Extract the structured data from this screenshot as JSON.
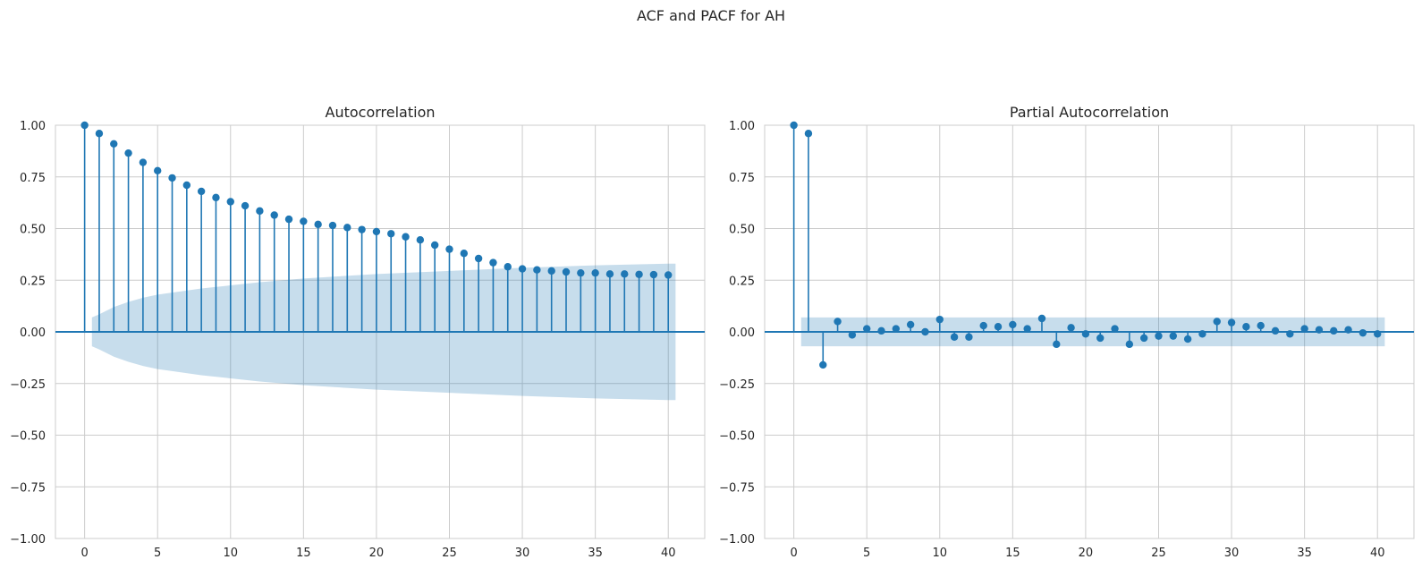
{
  "figure_title": "ACF and PACF for AH",
  "colors": {
    "series": "#1f77b4",
    "band": "#1f77b4",
    "grid": "#cccccc",
    "frame": "#cccccc",
    "text": "#262626"
  },
  "chart_data": [
    {
      "type": "stem",
      "title": "Autocorrelation",
      "xlabel": "",
      "ylabel": "",
      "xlim": [
        -2,
        42.5
      ],
      "ylim": [
        -1.0,
        1.0
      ],
      "xticks": [
        0,
        5,
        10,
        15,
        20,
        25,
        30,
        35,
        40
      ],
      "xtick_labels": [
        "0",
        "5",
        "10",
        "15",
        "20",
        "25",
        "30",
        "35",
        "40"
      ],
      "yticks": [
        -1.0,
        -0.75,
        -0.5,
        -0.25,
        0.0,
        0.25,
        0.5,
        0.75,
        1.0
      ],
      "ytick_labels": [
        "−1.00",
        "−0.75",
        "−0.50",
        "−0.25",
        "0.00",
        "0.25",
        "0.50",
        "0.75",
        "1.00"
      ],
      "grid": true,
      "lags": [
        0,
        1,
        2,
        3,
        4,
        5,
        6,
        7,
        8,
        9,
        10,
        11,
        12,
        13,
        14,
        15,
        16,
        17,
        18,
        19,
        20,
        21,
        22,
        23,
        24,
        25,
        26,
        27,
        28,
        29,
        30,
        31,
        32,
        33,
        34,
        35,
        36,
        37,
        38,
        39,
        40
      ],
      "values": [
        1.0,
        0.96,
        0.91,
        0.865,
        0.82,
        0.78,
        0.745,
        0.71,
        0.68,
        0.65,
        0.63,
        0.61,
        0.585,
        0.565,
        0.545,
        0.535,
        0.52,
        0.515,
        0.505,
        0.495,
        0.485,
        0.475,
        0.46,
        0.445,
        0.42,
        0.4,
        0.38,
        0.355,
        0.335,
        0.315,
        0.305,
        0.3,
        0.295,
        0.29,
        0.285,
        0.285,
        0.28,
        0.28,
        0.278,
        0.277,
        0.275
      ],
      "confidence_band": {
        "lags": [
          0.5,
          1,
          2,
          3,
          4,
          5,
          6,
          8,
          10,
          12,
          15,
          20,
          25,
          30,
          35,
          40,
          40.5
        ],
        "upper": [
          0.07,
          0.085,
          0.12,
          0.145,
          0.165,
          0.18,
          0.19,
          0.21,
          0.225,
          0.24,
          0.258,
          0.28,
          0.295,
          0.31,
          0.322,
          0.33,
          0.33
        ],
        "lower": [
          -0.07,
          -0.085,
          -0.12,
          -0.145,
          -0.165,
          -0.18,
          -0.19,
          -0.21,
          -0.225,
          -0.24,
          -0.258,
          -0.28,
          -0.295,
          -0.31,
          -0.322,
          -0.33,
          -0.33
        ]
      }
    },
    {
      "type": "stem",
      "title": "Partial Autocorrelation",
      "xlabel": "",
      "ylabel": "",
      "xlim": [
        -2,
        42.5
      ],
      "ylim": [
        -1.0,
        1.0
      ],
      "xticks": [
        0,
        5,
        10,
        15,
        20,
        25,
        30,
        35,
        40
      ],
      "xtick_labels": [
        "0",
        "5",
        "10",
        "15",
        "20",
        "25",
        "30",
        "35",
        "40"
      ],
      "yticks": [
        -1.0,
        -0.75,
        -0.5,
        -0.25,
        0.0,
        0.25,
        0.5,
        0.75,
        1.0
      ],
      "ytick_labels": [
        "−1.00",
        "−0.75",
        "−0.50",
        "−0.25",
        "0.00",
        "0.25",
        "0.50",
        "0.75",
        "1.00"
      ],
      "grid": true,
      "lags": [
        0,
        1,
        2,
        3,
        4,
        5,
        6,
        7,
        8,
        9,
        10,
        11,
        12,
        13,
        14,
        15,
        16,
        17,
        18,
        19,
        20,
        21,
        22,
        23,
        24,
        25,
        26,
        27,
        28,
        29,
        30,
        31,
        32,
        33,
        34,
        35,
        36,
        37,
        38,
        39,
        40
      ],
      "values": [
        1.0,
        0.96,
        -0.16,
        0.05,
        -0.015,
        0.015,
        0.005,
        0.015,
        0.035,
        0.0,
        0.06,
        -0.025,
        -0.025,
        0.03,
        0.025,
        0.035,
        0.015,
        0.065,
        -0.06,
        0.02,
        -0.01,
        -0.03,
        0.015,
        -0.06,
        -0.03,
        -0.02,
        -0.02,
        -0.035,
        -0.01,
        0.05,
        0.045,
        0.025,
        0.03,
        0.005,
        -0.01,
        0.015,
        0.01,
        0.005,
        0.01,
        -0.005,
        -0.01
      ],
      "confidence_band": {
        "lags": [
          0.5,
          40.5
        ],
        "upper": [
          0.07,
          0.07
        ],
        "lower": [
          -0.07,
          -0.07
        ]
      }
    }
  ]
}
